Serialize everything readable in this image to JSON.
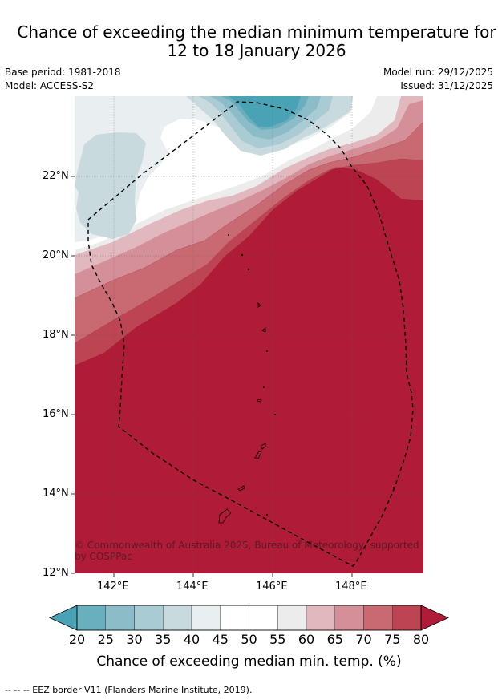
{
  "title_line1": "Chance of exceeding the median minimum temperature for",
  "title_line2": "12 to 18 January 2026",
  "base_period": "Base period: 1981-2018",
  "model": "Model: ACCESS-S2",
  "model_run": "Model run: 29/12/2025",
  "issued": "Issued: 31/12/2025",
  "copyright": "© Commonwealth of Australia 2025, Bureau of Meteorology, supported by COSPPac",
  "lat_labels": [
    "22°N",
    "20°N",
    "18°N",
    "16°N",
    "14°N",
    "12°N"
  ],
  "lon_labels": [
    "142°E",
    "144°E",
    "146°E",
    "148°E"
  ],
  "colorbar": {
    "title": "Chance of exceeding median min. temp. (%)",
    "ticks": [
      "20",
      "25",
      "30",
      "35",
      "40",
      "45",
      "50",
      "55",
      "60",
      "65",
      "70",
      "75",
      "80"
    ],
    "colors": [
      "#4aa3b4",
      "#6aafbd",
      "#8bbcc8",
      "#a9cbd3",
      "#c8dade",
      "#e9eff1",
      "#ffffff",
      "#ffffff",
      "#ececec",
      "#e0b8bd",
      "#d48f98",
      "#c96a73",
      "#bd4553",
      "#b01c38"
    ]
  },
  "footer": "--  --  -- EEZ border V11 (Flanders Marine Institute, 2019)."
}
